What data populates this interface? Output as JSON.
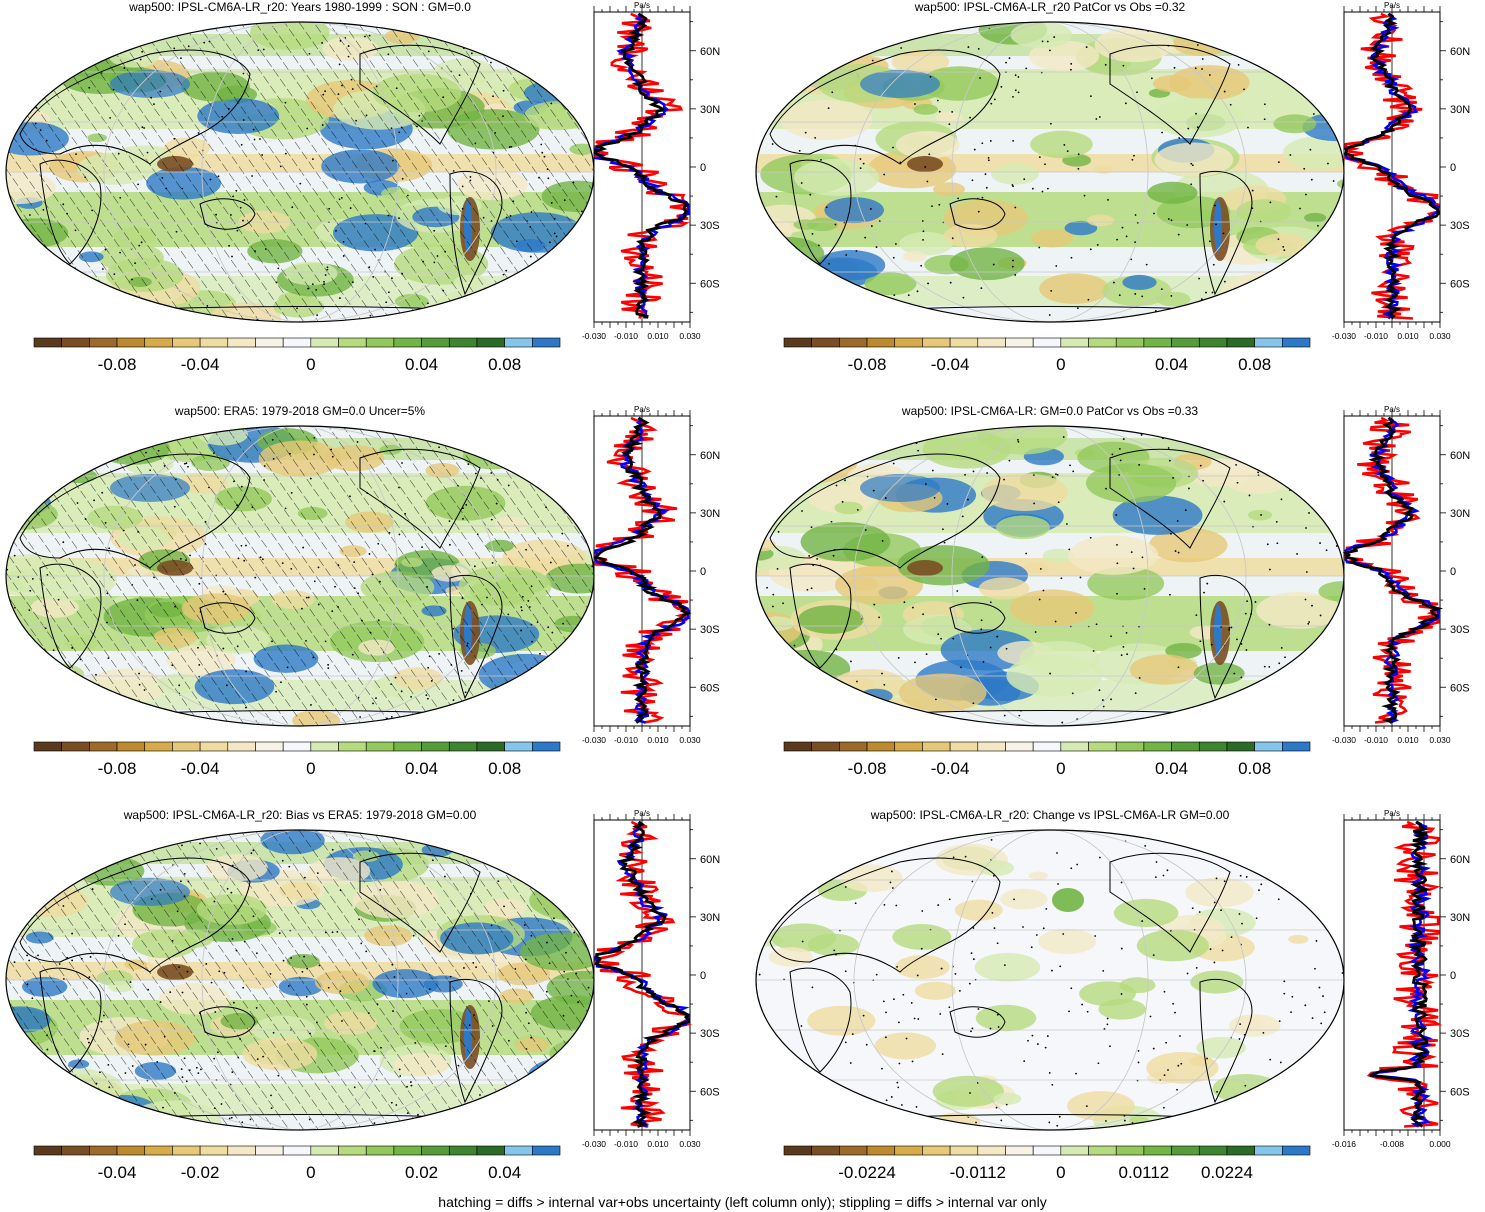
{
  "colors": {
    "model_line": "#ff0000",
    "obs_line": "#0000ff",
    "mmm_line": "#000000",
    "colorbar": [
      "#5a3a1d",
      "#7a4e23",
      "#9c6a2a",
      "#bd8b2f",
      "#d6ac4a",
      "#e6c878",
      "#efdca1",
      "#f4e8c6",
      "#f7f3e6",
      "#f5f7fb",
      "#d6ebb3",
      "#b5db7e",
      "#93c95c",
      "#72b445",
      "#579c3a",
      "#3f8430",
      "#2b6b27",
      "#85c5ea",
      "#2d79c7"
    ]
  },
  "footer": "hatching = diffs > internal var+obs uncertainty (left column only); stippling = diffs > internal var only",
  "panels": [
    {
      "title": "wap500: IPSL-CM6A-LR_r20: Years 1980-1999 : SON : GM=0.0",
      "hatching": true,
      "zonal_unit": "Pa/s",
      "zonal_xticks": [
        "-0.030",
        "-0.010",
        "0.010",
        "0.030"
      ],
      "lat_ticks": [
        "60N",
        "30N",
        "0",
        "30S",
        "60S"
      ],
      "colorbar_labels": [
        "-0.08",
        "-0.04",
        "0",
        "0.04",
        "0.08"
      ]
    },
    {
      "title": "wap500: IPSL-CM6A-LR_r20 PatCor vs Obs =0.32",
      "hatching": false,
      "zonal_unit": "Pa/s",
      "zonal_xticks": [
        "-0.030",
        "-0.010",
        "0.010",
        "0.030"
      ],
      "lat_ticks": [
        "60N",
        "30N",
        "0",
        "30S",
        "60S"
      ],
      "colorbar_labels": [
        "-0.08",
        "-0.04",
        "0",
        "0.04",
        "0.08"
      ]
    },
    {
      "title": "wap500: ERA5: 1979-2018 GM=0.0 Uncer=5%",
      "hatching": true,
      "zonal_unit": "Pa/s",
      "zonal_xticks": [
        "-0.030",
        "-0.010",
        "0.010",
        "0.030"
      ],
      "lat_ticks": [
        "60N",
        "30N",
        "0",
        "30S",
        "60S"
      ],
      "colorbar_labels": [
        "-0.08",
        "-0.04",
        "0",
        "0.04",
        "0.08"
      ]
    },
    {
      "title": "wap500: IPSL-CM6A-LR: GM=0.0 PatCor vs Obs =0.33",
      "hatching": false,
      "zonal_unit": "Pa/s",
      "zonal_xticks": [
        "-0.030",
        "-0.010",
        "0.010",
        "0.030"
      ],
      "lat_ticks": [
        "60N",
        "30N",
        "0",
        "30S",
        "60S"
      ],
      "colorbar_labels": [
        "-0.08",
        "-0.04",
        "0",
        "0.04",
        "0.08"
      ]
    },
    {
      "title": "wap500: IPSL-CM6A-LR_r20: Bias vs ERA5: 1979-2018  GM=0.00",
      "hatching": true,
      "zonal_unit": "Pa/s",
      "zonal_xticks": [
        "-0.030",
        "-0.010",
        "0.010",
        "0.030"
      ],
      "lat_ticks": [
        "60N",
        "30N",
        "0",
        "30S",
        "60S"
      ],
      "colorbar_labels": [
        "-0.04",
        "-0.02",
        "0",
        "0.02",
        "0.04"
      ]
    },
    {
      "title": "wap500: IPSL-CM6A-LR_r20: Change vs IPSL-CM6A-LR GM=0.00",
      "hatching": false,
      "zonal_unit": "Pa/s",
      "zonal_xticks": [
        "-0.016",
        "-0.008",
        "0.000"
      ],
      "lat_ticks": [
        "60N",
        "30N",
        "0",
        "30S",
        "60S"
      ],
      "colorbar_labels": [
        "-0.0224",
        "-0.0112",
        "0",
        "0.0112",
        "0.0224"
      ]
    }
  ],
  "chart_data": [
    {
      "type": "heatmap",
      "title": "wap500: IPSL-CM6A-LR_r20: Years 1980-1999 : SON : GM=0.0",
      "colorbar_ticks": [
        -0.08,
        -0.04,
        0,
        0.04,
        0.08
      ],
      "zonal_mean": {
        "xlabel": "Pa/s",
        "xlim": [
          -0.03,
          0.03
        ],
        "ylim": [
          -80,
          80
        ]
      }
    },
    {
      "type": "heatmap",
      "title": "wap500: IPSL-CM6A-LR_r20 PatCor vs Obs =0.32",
      "colorbar_ticks": [
        -0.08,
        -0.04,
        0,
        0.04,
        0.08
      ],
      "zonal_mean": {
        "xlabel": "Pa/s",
        "xlim": [
          -0.03,
          0.03
        ],
        "ylim": [
          -80,
          80
        ]
      }
    },
    {
      "type": "heatmap",
      "title": "wap500: ERA5: 1979-2018 GM=0.0 Uncer=5%",
      "colorbar_ticks": [
        -0.08,
        -0.04,
        0,
        0.04,
        0.08
      ],
      "zonal_mean": {
        "xlabel": "Pa/s",
        "xlim": [
          -0.03,
          0.03
        ],
        "ylim": [
          -80,
          80
        ]
      }
    },
    {
      "type": "heatmap",
      "title": "wap500: IPSL-CM6A-LR: GM=0.0 PatCor vs Obs =0.33",
      "colorbar_ticks": [
        -0.08,
        -0.04,
        0,
        0.04,
        0.08
      ],
      "zonal_mean": {
        "xlabel": "Pa/s",
        "xlim": [
          -0.03,
          0.03
        ],
        "ylim": [
          -80,
          80
        ]
      }
    },
    {
      "type": "heatmap",
      "title": "wap500: IPSL-CM6A-LR_r20: Bias vs ERA5: 1979-2018  GM=0.00",
      "colorbar_ticks": [
        -0.04,
        -0.02,
        0,
        0.02,
        0.04
      ],
      "zonal_mean": {
        "xlabel": "Pa/s",
        "xlim": [
          -0.03,
          0.03
        ],
        "ylim": [
          -80,
          80
        ]
      }
    },
    {
      "type": "heatmap",
      "title": "wap500: IPSL-CM6A-LR_r20: Change vs IPSL-CM6A-LR GM=0.00",
      "colorbar_ticks": [
        -0.0224,
        -0.0112,
        0,
        0.0112,
        0.0224
      ],
      "zonal_mean": {
        "xlabel": "Pa/s",
        "xlim": [
          -0.02,
          0.004
        ],
        "ylim": [
          -80,
          80
        ]
      }
    }
  ]
}
